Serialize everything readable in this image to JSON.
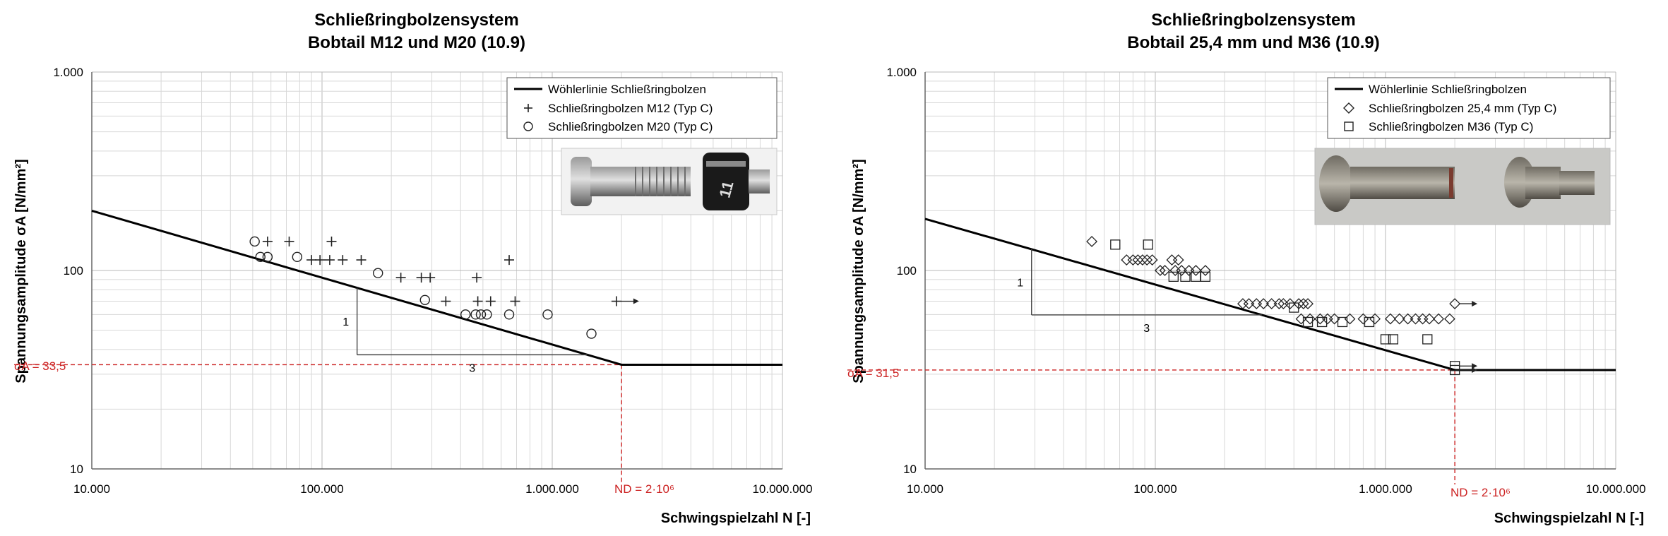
{
  "chart_data": [
    {
      "type": "scatter",
      "title": "Schließringbolzensystem",
      "subtitle": "Bobtail M12 und M20 (10.9)",
      "xlabel": "Schwingspielzahl N [-]",
      "ylabel": "Spannungsamplitude σA [N/mm²]",
      "x_scale": "log",
      "y_scale": "log",
      "xlim": [
        10000,
        10000000
      ],
      "ylim": [
        10,
        1000
      ],
      "x_ticks": [
        "10.000",
        "100.000",
        "1.000.000",
        "10.000.000"
      ],
      "y_ticks": [
        "10",
        "100",
        "1.000"
      ],
      "grid": true,
      "legend_position": "top-right",
      "wohler_line": {
        "name": "Wöhlerlinie Schließringbolzen",
        "x": [
          10000,
          2000000,
          10000000
        ],
        "y": [
          200,
          33.5,
          33.5
        ],
        "slope_run": "3",
        "slope_rise": "1"
      },
      "endurance": {
        "label": "σA = 33,5",
        "value": 33.5,
        "nd_label": "ND = 2·10⁶",
        "nd": 2000000
      },
      "series": [
        {
          "name": "Schließringbolzen M12 (Typ C)",
          "marker": "plus",
          "x": [
            58000,
            72000,
            90000,
            98000,
            108000,
            110000,
            123000,
            148000,
            220000,
            270000,
            295000,
            345000,
            470000,
            475000,
            540000,
            650000,
            690000,
            1900000
          ],
          "y": [
            140,
            140,
            113,
            113,
            113,
            140,
            113,
            113,
            92,
            92,
            92,
            70,
            92,
            70,
            70,
            113,
            70,
            70
          ],
          "runout": [
            false,
            false,
            false,
            false,
            false,
            false,
            false,
            false,
            false,
            false,
            false,
            false,
            false,
            false,
            false,
            false,
            false,
            true
          ]
        },
        {
          "name": "Schließringbolzen M20 (Typ C)",
          "marker": "circle",
          "x": [
            51000,
            54000,
            58000,
            78000,
            175000,
            280000,
            420000,
            465000,
            490000,
            520000,
            650000,
            955000,
            1480000
          ],
          "y": [
            140,
            117,
            117,
            117,
            97,
            71,
            60,
            60,
            60,
            60,
            60,
            60,
            48
          ],
          "runout": [
            false,
            false,
            false,
            false,
            false,
            false,
            false,
            false,
            false,
            false,
            false,
            false,
            false
          ]
        }
      ]
    },
    {
      "type": "scatter",
      "title": "Schließringbolzensystem",
      "subtitle": "Bobtail 25,4 mm und M36 (10.9)",
      "xlabel": "Schwingspielzahl N [-]",
      "ylabel": "Spannungsamplitude σA [N/mm²]",
      "x_scale": "log",
      "y_scale": "log",
      "xlim": [
        10000,
        10000000
      ],
      "ylim": [
        10,
        1000
      ],
      "x_ticks": [
        "10.000",
        "100.000",
        "1.000.000",
        "10.000.000"
      ],
      "y_ticks": [
        "10",
        "100",
        "1.000"
      ],
      "grid": true,
      "legend_position": "top-right",
      "wohler_line": {
        "name": "Wöhlerlinie Schließringbolzen",
        "x": [
          10000,
          2000000,
          10000000
        ],
        "y": [
          182,
          31.5,
          31.5
        ],
        "slope_run": "3",
        "slope_rise": "1"
      },
      "endurance": {
        "label": "σA = 31,5",
        "value": 31.5,
        "nd_label": "ND = 2·10⁶",
        "nd": 2000000
      },
      "series": [
        {
          "name": "Schließringbolzen 25,4 mm (Typ C)",
          "marker": "diamond",
          "x": [
            53000,
            75000,
            80000,
            84000,
            88000,
            92000,
            97000,
            105000,
            110000,
            118000,
            122000,
            126000,
            130000,
            140000,
            150000,
            165000,
            240000,
            255000,
            275000,
            295000,
            320000,
            345000,
            360000,
            385000,
            420000,
            430000,
            440000,
            460000,
            470000,
            520000,
            560000,
            600000,
            700000,
            800000,
            900000,
            1050000,
            1150000,
            1250000,
            1350000,
            1450000,
            1550000,
            1700000,
            1900000,
            2000000
          ],
          "y": [
            140,
            113,
            113,
            113,
            113,
            113,
            113,
            100,
            100,
            113,
            100,
            113,
            100,
            100,
            100,
            100,
            68,
            68,
            68,
            68,
            68,
            68,
            68,
            68,
            68,
            57,
            68,
            68,
            57,
            57,
            57,
            57,
            57,
            57,
            57,
            57,
            57,
            57,
            57,
            57,
            57,
            57,
            57,
            68
          ],
          "runout": [
            false,
            false,
            false,
            false,
            false,
            false,
            false,
            false,
            false,
            false,
            false,
            false,
            false,
            false,
            false,
            false,
            false,
            false,
            false,
            false,
            false,
            false,
            false,
            false,
            false,
            false,
            false,
            false,
            false,
            false,
            false,
            false,
            false,
            false,
            false,
            false,
            false,
            false,
            false,
            false,
            false,
            false,
            false,
            true
          ]
        },
        {
          "name": "Schließringbolzen M36 (Typ C)",
          "marker": "square",
          "x": [
            67000,
            93000,
            120000,
            135000,
            150000,
            165000,
            400000,
            460000,
            530000,
            650000,
            850000,
            1000000,
            1080000,
            1520000,
            2000000,
            2000000
          ],
          "y": [
            135,
            135,
            93,
            93,
            93,
            93,
            65,
            55,
            55,
            55,
            55,
            45,
            45,
            45,
            33,
            31.5
          ],
          "runout": [
            false,
            false,
            false,
            false,
            false,
            false,
            false,
            false,
            false,
            false,
            false,
            false,
            false,
            false,
            true,
            true
          ]
        }
      ]
    }
  ]
}
